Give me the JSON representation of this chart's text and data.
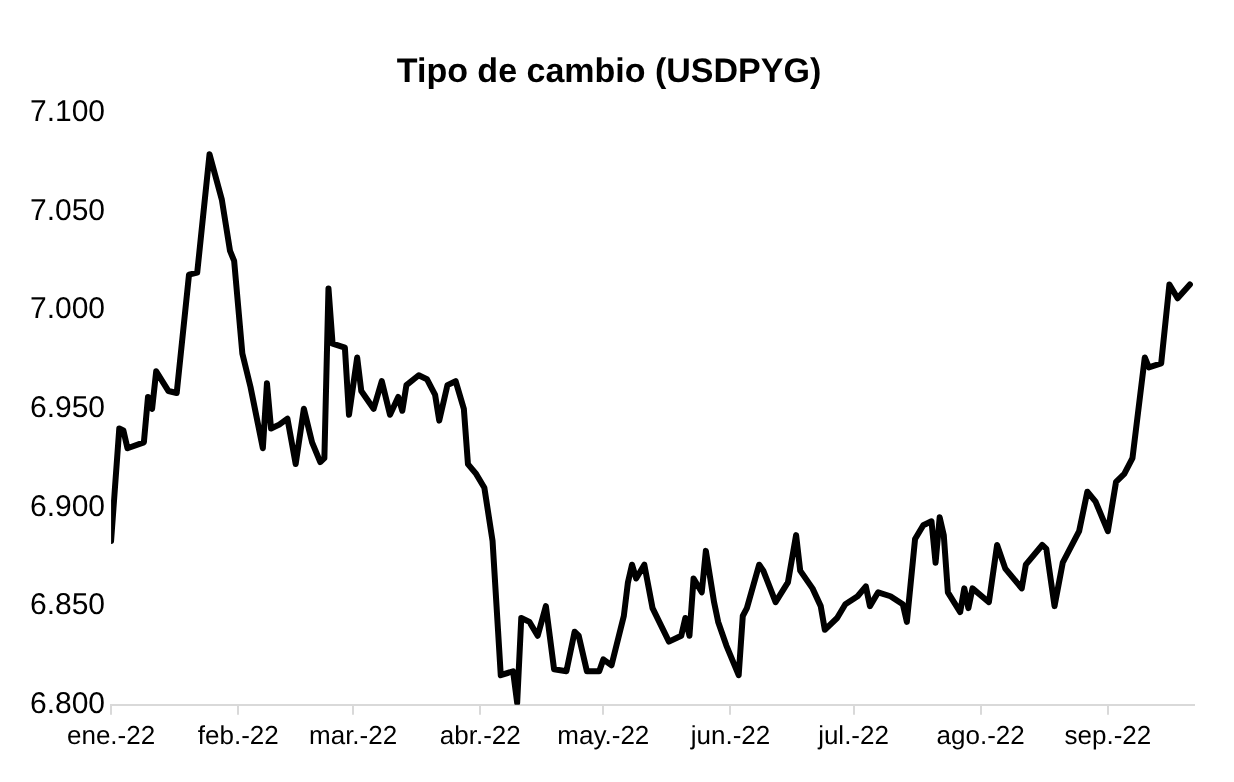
{
  "chart_data": {
    "type": "line",
    "title": "Tipo de cambio (USDPYG)",
    "x": [
      "2022-01-01",
      "2022-01-03",
      "2022-01-04",
      "2022-01-05",
      "2022-01-09",
      "2022-01-10",
      "2022-01-11",
      "2022-01-12",
      "2022-01-15",
      "2022-01-17",
      "2022-01-20",
      "2022-01-22",
      "2022-01-23",
      "2022-01-25",
      "2022-01-28",
      "2022-01-30",
      "2022-01-31",
      "2022-02-02",
      "2022-02-04",
      "2022-02-07",
      "2022-02-08",
      "2022-02-09",
      "2022-02-11",
      "2022-02-13",
      "2022-02-15",
      "2022-02-17",
      "2022-02-19",
      "2022-02-21",
      "2022-02-22",
      "2022-02-23",
      "2022-02-24",
      "2022-02-27",
      "2022-02-28",
      "2022-03-02",
      "2022-03-03",
      "2022-03-06",
      "2022-03-08",
      "2022-03-10",
      "2022-03-12",
      "2022-03-13",
      "2022-03-14",
      "2022-03-17",
      "2022-03-19",
      "2022-03-21",
      "2022-03-22",
      "2022-03-24",
      "2022-03-26",
      "2022-03-28",
      "2022-03-29",
      "2022-03-31",
      "2022-04-02",
      "2022-04-04",
      "2022-04-06",
      "2022-04-09",
      "2022-04-10",
      "2022-04-11",
      "2022-04-13",
      "2022-04-15",
      "2022-04-17",
      "2022-04-19",
      "2022-04-22",
      "2022-04-24",
      "2022-04-25",
      "2022-04-27",
      "2022-04-30",
      "2022-05-01",
      "2022-05-03",
      "2022-05-06",
      "2022-05-07",
      "2022-05-08",
      "2022-05-09",
      "2022-05-11",
      "2022-05-13",
      "2022-05-17",
      "2022-05-20",
      "2022-05-21",
      "2022-05-22",
      "2022-05-23",
      "2022-05-25",
      "2022-05-26",
      "2022-05-28",
      "2022-05-29",
      "2022-05-31",
      "2022-06-03",
      "2022-06-04",
      "2022-06-05",
      "2022-06-08",
      "2022-06-09",
      "2022-06-12",
      "2022-06-15",
      "2022-06-17",
      "2022-06-18",
      "2022-06-21",
      "2022-06-23",
      "2022-06-24",
      "2022-06-27",
      "2022-06-29",
      "2022-07-02",
      "2022-07-04",
      "2022-07-05",
      "2022-07-07",
      "2022-07-10",
      "2022-07-13",
      "2022-07-14",
      "2022-07-16",
      "2022-07-18",
      "2022-07-20",
      "2022-07-21",
      "2022-07-22",
      "2022-07-23",
      "2022-07-24",
      "2022-07-27",
      "2022-07-28",
      "2022-07-29",
      "2022-07-30",
      "2022-08-03",
      "2022-08-05",
      "2022-08-07",
      "2022-08-11",
      "2022-08-12",
      "2022-08-16",
      "2022-08-17",
      "2022-08-19",
      "2022-08-21",
      "2022-08-25",
      "2022-08-27",
      "2022-08-29",
      "2022-09-01",
      "2022-09-03",
      "2022-09-05",
      "2022-09-07",
      "2022-09-10",
      "2022-09-11",
      "2022-09-14",
      "2022-09-16",
      "2022-09-18",
      "2022-09-21"
    ],
    "series": [
      {
        "color": "#000000",
        "values": [
          6883,
          6940,
          6939,
          6930,
          6933,
          6956,
          6950,
          6969,
          6959,
          6958,
          7018,
          7019,
          7039,
          7079,
          7056,
          7030,
          7025,
          6978,
          6961,
          6930,
          6963,
          6940,
          6942,
          6945,
          6922,
          6950,
          6933,
          6923,
          6925,
          7011,
          6983,
          6981,
          6947,
          6976,
          6959,
          6950,
          6964,
          6947,
          6956,
          6949,
          6962,
          6967,
          6965,
          6957,
          6944,
          6962,
          6964,
          6950,
          6922,
          6917,
          6910,
          6883,
          6815,
          6817,
          6801,
          6844,
          6842,
          6835,
          6850,
          6818,
          6817,
          6837,
          6835,
          6817,
          6817,
          6823,
          6820,
          6845,
          6862,
          6871,
          6864,
          6871,
          6849,
          6832,
          6835,
          6844,
          6835,
          6864,
          6857,
          6878,
          6852,
          6842,
          6830,
          6815,
          6845,
          6849,
          6871,
          6868,
          6852,
          6862,
          6886,
          6868,
          6859,
          6850,
          6838,
          6844,
          6851,
          6855,
          6860,
          6850,
          6857,
          6855,
          6851,
          6842,
          6884,
          6891,
          6893,
          6872,
          6895,
          6886,
          6857,
          6847,
          6859,
          6849,
          6859,
          6852,
          6881,
          6869,
          6859,
          6871,
          6881,
          6879,
          6850,
          6872,
          6888,
          6908,
          6903,
          6888,
          6913,
          6917,
          6925,
          6976,
          6971,
          6973,
          7013,
          7006,
          7013
        ]
      }
    ],
    "xlim": [
      "2022-01-01",
      "2022-09-22"
    ],
    "xticks": [
      {
        "value": "2022-01-01",
        "label": "ene.-22"
      },
      {
        "value": "2022-02-01",
        "label": "feb.-22"
      },
      {
        "value": "2022-03-01",
        "label": "mar.-22"
      },
      {
        "value": "2022-04-01",
        "label": "abr.-22"
      },
      {
        "value": "2022-05-01",
        "label": "may.-22"
      },
      {
        "value": "2022-06-01",
        "label": "jun.-22"
      },
      {
        "value": "2022-07-01",
        "label": "jul.-22"
      },
      {
        "value": "2022-08-01",
        "label": "ago.-22"
      },
      {
        "value": "2022-09-01",
        "label": "sep.-22"
      }
    ],
    "ylim": [
      6800,
      7100
    ],
    "yticks": [
      {
        "value": 6800,
        "label": "6.800"
      },
      {
        "value": 6850,
        "label": "6.850"
      },
      {
        "value": 6900,
        "label": "6.900"
      },
      {
        "value": 6950,
        "label": "6.950"
      },
      {
        "value": 7000,
        "label": "7.000"
      },
      {
        "value": 7050,
        "label": "7.050"
      },
      {
        "value": 7100,
        "label": "7.100"
      }
    ],
    "grid": false,
    "marker": "none",
    "line_style": "solid"
  }
}
